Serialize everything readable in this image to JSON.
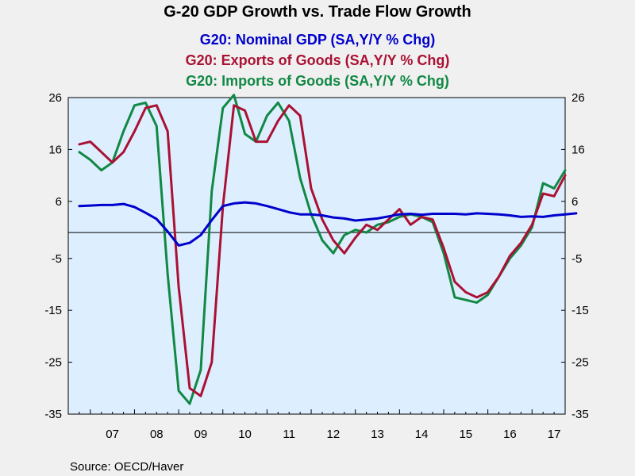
{
  "chart_data": {
    "type": "line",
    "title": "G-20 GDP Growth vs. Trade Flow Growth",
    "series": [
      {
        "name": "G20: Nominal GDP (SA,Y/Y % Chg)",
        "color": "#0000cc",
        "values": [
          5.1,
          5.2,
          5.3,
          5.3,
          5.5,
          4.9,
          3.8,
          2.6,
          0.2,
          -2.5,
          -2.0,
          -0.5,
          2.4,
          5.1,
          5.6,
          5.8,
          5.6,
          5.1,
          4.5,
          3.9,
          3.5,
          3.5,
          3.3,
          2.9,
          2.7,
          2.3,
          2.5,
          2.7,
          3.1,
          3.5,
          3.6,
          3.4,
          3.6,
          3.6,
          3.6,
          3.5,
          3.7,
          3.6,
          3.5,
          3.3,
          3.0,
          3.1,
          3.0,
          3.3,
          3.5,
          3.7
        ]
      },
      {
        "name": "G20: Exports of Goods (SA,Y/Y % Chg)",
        "color": "#aa1133",
        "values": [
          17.0,
          17.5,
          15.5,
          13.5,
          15.5,
          19.5,
          24.0,
          24.5,
          19.5,
          -10.5,
          -30.0,
          -31.5,
          -25.0,
          5.0,
          24.5,
          23.5,
          17.5,
          17.5,
          21.5,
          24.5,
          22.5,
          8.5,
          2.5,
          -1.5,
          -4.0,
          -1.0,
          1.5,
          0.5,
          2.5,
          4.5,
          1.5,
          3.0,
          2.5,
          -3.0,
          -9.5,
          -11.5,
          -12.5,
          -11.5,
          -8.5,
          -4.5,
          -2.0,
          1.5,
          7.5,
          7.0,
          11.0
        ]
      },
      {
        "name": "G20: Imports of Goods (SA,Y/Y % Chg)",
        "color": "#118844",
        "values": [
          15.5,
          14.0,
          12.0,
          13.5,
          19.5,
          24.5,
          25.0,
          20.5,
          -8.0,
          -30.5,
          -33.0,
          -26.5,
          8.0,
          24.0,
          26.5,
          19.0,
          17.5,
          22.5,
          25.0,
          21.5,
          10.5,
          3.5,
          -1.5,
          -4.0,
          -0.5,
          0.5,
          0.0,
          1.5,
          2.0,
          3.0,
          3.5,
          3.0,
          2.0,
          -4.0,
          -12.5,
          -13.0,
          -13.5,
          -12.0,
          -8.5,
          -5.0,
          -2.5,
          1.0,
          9.5,
          8.5,
          12.0
        ]
      }
    ],
    "x_labels": [
      "07",
      "08",
      "09",
      "10",
      "11",
      "12",
      "13",
      "14",
      "15",
      "16",
      "17"
    ],
    "x_start": 2006.75,
    "x_step": 0.25,
    "ylim": [
      -35,
      26
    ],
    "yticks": [
      26,
      16,
      6,
      -5,
      -15,
      -25,
      -35
    ],
    "zero_line": true,
    "grid": false,
    "plot_background": "#ddeeff",
    "source": "Source:  OECD/Haver"
  }
}
